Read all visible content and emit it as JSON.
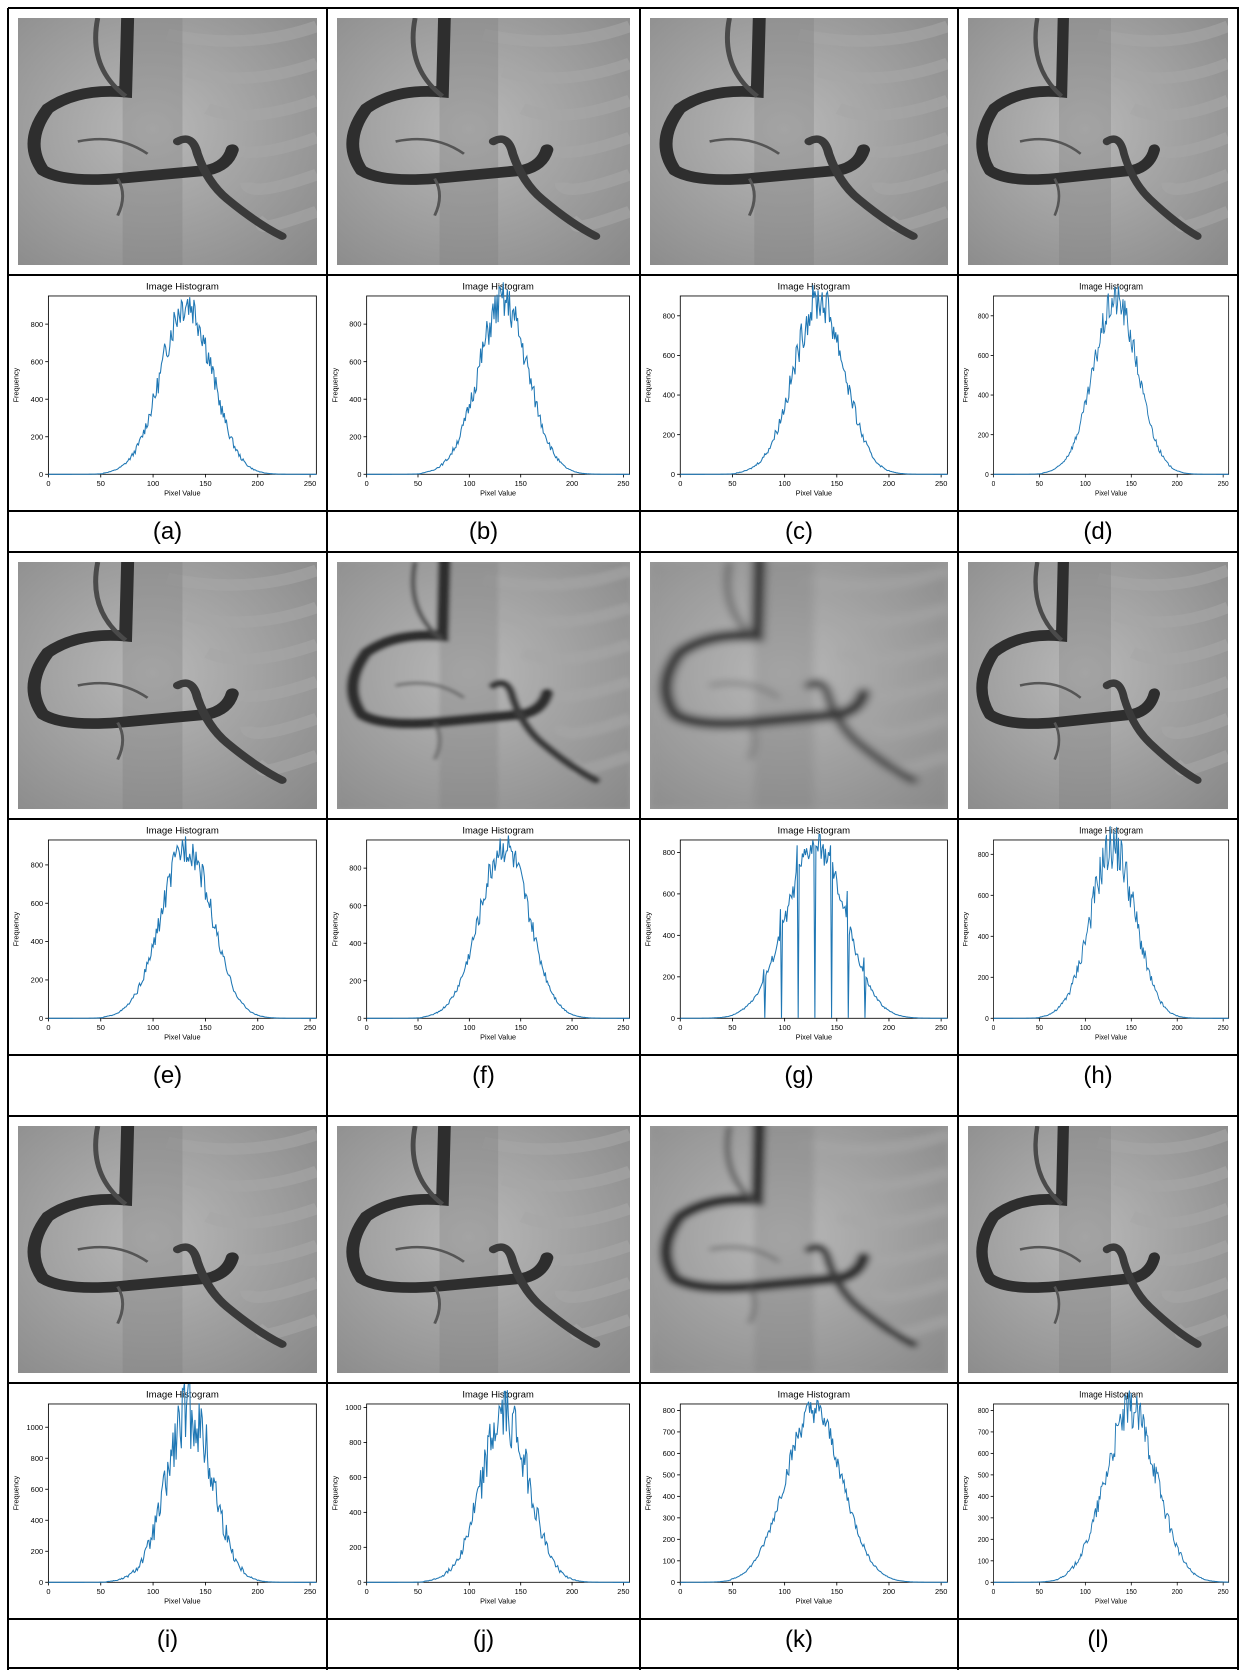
{
  "figure": {
    "panels": [
      {
        "label": "(a)",
        "title": "Image Histogram",
        "xlabel": "Pixel Value",
        "ylabel": "Frequency",
        "yticks": [
          0,
          200,
          400,
          600,
          800
        ],
        "ymax": 950,
        "peak": 920,
        "center": 132,
        "sigma": 24,
        "noise": 0.12,
        "style": "sharp"
      },
      {
        "label": "(b)",
        "title": "Image Histogram",
        "xlabel": "Pixel Value",
        "ylabel": "Frequency",
        "yticks": [
          0,
          200,
          400,
          600,
          800
        ],
        "ymax": 950,
        "peak": 920,
        "center": 133,
        "sigma": 24,
        "noise": 0.12,
        "style": "sharp"
      },
      {
        "label": "(c)",
        "title": "Image Histogram",
        "xlabel": "Pixel Value",
        "ylabel": "Frequency",
        "yticks": [
          0,
          200,
          400,
          600,
          800
        ],
        "ymax": 900,
        "peak": 880,
        "center": 133,
        "sigma": 24,
        "noise": 0.12,
        "style": "sharp"
      },
      {
        "label": "(d)",
        "title": "Image Histogram",
        "xlabel": "Pixel Value",
        "ylabel": "Frequency",
        "yticks": [
          0,
          200,
          400,
          600,
          800
        ],
        "ymax": 900,
        "peak": 880,
        "center": 133,
        "sigma": 24,
        "noise": 0.1,
        "style": "sharp"
      },
      {
        "label": "(e)",
        "title": "Image Histogram",
        "xlabel": "Pixel Value",
        "ylabel": "Frequency",
        "yticks": [
          0,
          200,
          400,
          600,
          800
        ],
        "ymax": 930,
        "peak": 900,
        "center": 132,
        "sigma": 24,
        "noise": 0.1,
        "style": "sharp"
      },
      {
        "label": "(f)",
        "title": "Image Histogram",
        "xlabel": "Pixel Value",
        "ylabel": "Frequency",
        "yticks": [
          0,
          200,
          400,
          600,
          800
        ],
        "ymax": 950,
        "peak": 920,
        "center": 134,
        "sigma": 24,
        "noise": 0.1,
        "style": "soft"
      },
      {
        "label": "(g)",
        "title": "Image Histogram",
        "xlabel": "Pixel Value",
        "ylabel": "Frequency",
        "yticks": [
          0,
          200,
          400,
          600,
          800
        ],
        "ymax": 860,
        "peak": 830,
        "center": 130,
        "sigma": 28,
        "noise": 0.08,
        "style": "spikes"
      },
      {
        "label": "(h)",
        "title": "Image Histogram",
        "xlabel": "Pixel Value",
        "ylabel": "Frequency",
        "yticks": [
          0,
          200,
          400,
          600,
          800
        ],
        "ymax": 870,
        "peak": 840,
        "center": 130,
        "sigma": 24,
        "noise": 0.14,
        "style": "rough"
      },
      {
        "label": "(i)",
        "title": "Image Histogram",
        "xlabel": "Pixel Value",
        "ylabel": "Frequency",
        "yticks": [
          0,
          200,
          400,
          600,
          800,
          1000
        ],
        "ymax": 1150,
        "peak": 1100,
        "center": 135,
        "sigma": 22,
        "noise": 0.22,
        "style": "rough"
      },
      {
        "label": "(j)",
        "title": "Image Histogram",
        "xlabel": "Pixel Value",
        "ylabel": "Frequency",
        "yticks": [
          0,
          200,
          400,
          600,
          800,
          1000
        ],
        "ymax": 1020,
        "peak": 960,
        "center": 135,
        "sigma": 23,
        "noise": 0.18,
        "style": "rough"
      },
      {
        "label": "(k)",
        "title": "Image Histogram",
        "xlabel": "Pixel Value",
        "ylabel": "Frequency",
        "yticks": [
          0,
          100,
          200,
          300,
          400,
          500,
          600,
          700,
          800
        ],
        "ymax": 830,
        "peak": 800,
        "center": 128,
        "sigma": 27,
        "noise": 0.08,
        "style": "soft"
      },
      {
        "label": "(l)",
        "title": "Image Histogram",
        "xlabel": "Pixel Value",
        "ylabel": "Frequency",
        "yticks": [
          0,
          100,
          200,
          300,
          400,
          500,
          600,
          700,
          800
        ],
        "ymax": 830,
        "peak": 800,
        "center": 150,
        "sigma": 28,
        "noise": 0.12,
        "style": "rough"
      }
    ],
    "xticks": [
      0,
      50,
      100,
      150,
      200,
      250
    ],
    "xmax": 256,
    "line_color": "#1f77b4"
  },
  "chart_data": [
    {
      "type": "line",
      "panel": "(a)",
      "title": "Image Histogram",
      "xlabel": "Pixel Value",
      "ylabel": "Frequency",
      "xlim": [
        0,
        256
      ],
      "ylim": [
        0,
        950
      ],
      "x": [
        0,
        50,
        75,
        100,
        115,
        125,
        132,
        140,
        150,
        165,
        180,
        200,
        220,
        256
      ],
      "y": [
        0,
        15,
        60,
        180,
        420,
        720,
        920,
        760,
        560,
        300,
        110,
        25,
        5,
        0
      ]
    },
    {
      "type": "line",
      "panel": "(b)",
      "title": "Image Histogram",
      "xlabel": "Pixel Value",
      "ylabel": "Frequency",
      "xlim": [
        0,
        256
      ],
      "ylim": [
        0,
        950
      ],
      "x": [
        0,
        50,
        75,
        100,
        115,
        125,
        133,
        140,
        150,
        165,
        180,
        200,
        220,
        256
      ],
      "y": [
        0,
        15,
        60,
        180,
        420,
        720,
        920,
        770,
        560,
        300,
        110,
        25,
        5,
        0
      ]
    },
    {
      "type": "line",
      "panel": "(c)",
      "title": "Image Histogram",
      "xlabel": "Pixel Value",
      "ylabel": "Frequency",
      "xlim": [
        0,
        256
      ],
      "ylim": [
        0,
        900
      ],
      "x": [
        0,
        50,
        75,
        100,
        115,
        125,
        133,
        140,
        150,
        165,
        180,
        200,
        220,
        256
      ],
      "y": [
        0,
        15,
        55,
        170,
        400,
        700,
        880,
        740,
        540,
        290,
        100,
        20,
        5,
        0
      ]
    },
    {
      "type": "line",
      "panel": "(d)",
      "title": "Image Histogram",
      "xlabel": "Pixel Value",
      "ylabel": "Frequency",
      "xlim": [
        0,
        256
      ],
      "ylim": [
        0,
        900
      ],
      "x": [
        0,
        50,
        75,
        100,
        115,
        125,
        133,
        140,
        150,
        165,
        180,
        200,
        220,
        256
      ],
      "y": [
        0,
        15,
        55,
        170,
        400,
        700,
        880,
        740,
        540,
        290,
        100,
        20,
        5,
        0
      ]
    },
    {
      "type": "line",
      "panel": "(e)",
      "title": "Image Histogram",
      "xlabel": "Pixel Value",
      "ylabel": "Frequency",
      "xlim": [
        0,
        256
      ],
      "ylim": [
        0,
        930
      ],
      "x": [
        0,
        50,
        75,
        100,
        115,
        125,
        132,
        140,
        150,
        165,
        180,
        200,
        220,
        256
      ],
      "y": [
        0,
        15,
        58,
        175,
        410,
        710,
        900,
        750,
        550,
        295,
        105,
        22,
        5,
        0
      ]
    },
    {
      "type": "line",
      "panel": "(f)",
      "title": "Image Histogram",
      "xlabel": "Pixel Value",
      "ylabel": "Frequency",
      "xlim": [
        0,
        256
      ],
      "ylim": [
        0,
        950
      ],
      "x": [
        0,
        50,
        75,
        100,
        115,
        125,
        134,
        142,
        150,
        165,
        180,
        200,
        220,
        256
      ],
      "y": [
        0,
        15,
        60,
        180,
        420,
        720,
        920,
        770,
        560,
        300,
        110,
        25,
        5,
        0
      ]
    },
    {
      "type": "line",
      "panel": "(g)",
      "title": "Image Histogram",
      "xlabel": "Pixel Value",
      "ylabel": "Frequency",
      "xlim": [
        0,
        256
      ],
      "ylim": [
        0,
        860
      ],
      "x": [
        0,
        50,
        75,
        100,
        115,
        125,
        130,
        140,
        150,
        165,
        180,
        200,
        220,
        256
      ],
      "y": [
        0,
        20,
        80,
        220,
        500,
        760,
        830,
        780,
        620,
        380,
        150,
        35,
        8,
        0
      ]
    },
    {
      "type": "line",
      "panel": "(h)",
      "title": "Image Histogram",
      "xlabel": "Pixel Value",
      "ylabel": "Frequency",
      "xlim": [
        0,
        256
      ],
      "ylim": [
        0,
        870
      ],
      "x": [
        0,
        50,
        75,
        100,
        115,
        125,
        130,
        140,
        150,
        165,
        180,
        200,
        220,
        256
      ],
      "y": [
        0,
        15,
        60,
        180,
        420,
        710,
        840,
        720,
        540,
        290,
        100,
        20,
        5,
        0
      ]
    },
    {
      "type": "line",
      "panel": "(i)",
      "title": "Image Histogram",
      "xlabel": "Pixel Value",
      "ylabel": "Frequency",
      "xlim": [
        0,
        256
      ],
      "ylim": [
        0,
        1150
      ],
      "x": [
        0,
        50,
        75,
        100,
        115,
        125,
        135,
        145,
        155,
        165,
        175,
        200,
        220,
        256
      ],
      "y": [
        0,
        20,
        80,
        300,
        650,
        900,
        1100,
        880,
        700,
        300,
        250,
        20,
        5,
        0
      ]
    },
    {
      "type": "line",
      "panel": "(j)",
      "title": "Image Histogram",
      "xlabel": "Pixel Value",
      "ylabel": "Frequency",
      "xlim": [
        0,
        256
      ],
      "ylim": [
        0,
        1020
      ],
      "x": [
        0,
        50,
        75,
        100,
        115,
        125,
        135,
        145,
        155,
        165,
        180,
        200,
        220,
        256
      ],
      "y": [
        0,
        20,
        80,
        250,
        600,
        850,
        960,
        820,
        620,
        350,
        120,
        20,
        5,
        0
      ]
    },
    {
      "type": "line",
      "panel": "(k)",
      "title": "Image Histogram",
      "xlabel": "Pixel Value",
      "ylabel": "Frequency",
      "xlim": [
        0,
        256
      ],
      "ylim": [
        0,
        830
      ],
      "x": [
        0,
        50,
        75,
        100,
        115,
        125,
        128,
        140,
        150,
        165,
        180,
        200,
        220,
        256
      ],
      "y": [
        0,
        25,
        110,
        330,
        600,
        780,
        800,
        720,
        560,
        320,
        130,
        30,
        8,
        0
      ]
    },
    {
      "type": "line",
      "panel": "(l)",
      "title": "Image Histogram",
      "xlabel": "Pixel Value",
      "ylabel": "Frequency",
      "xlim": [
        0,
        256
      ],
      "ylim": [
        0,
        830
      ],
      "x": [
        0,
        50,
        75,
        100,
        120,
        135,
        150,
        160,
        170,
        185,
        200,
        220,
        240,
        256
      ],
      "y": [
        0,
        20,
        60,
        160,
        380,
        620,
        800,
        700,
        560,
        330,
        140,
        40,
        10,
        0
      ]
    }
  ]
}
